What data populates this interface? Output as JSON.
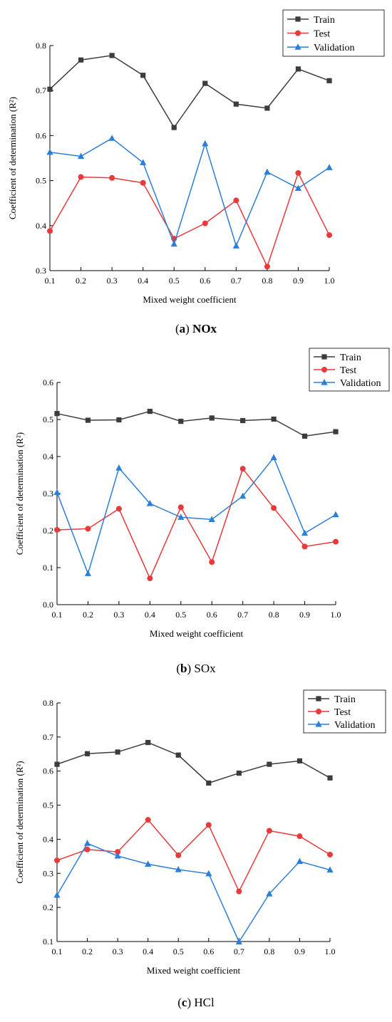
{
  "chart_data": [
    {
      "type": "line",
      "caption_prefix": "(",
      "caption_letter": "a",
      "caption_suffix": ")",
      "caption_name": "NOx",
      "caption_name_bold": true,
      "xlabel": "Mixed weight coefficient",
      "ylabel": "Coefficient of determination (R²)",
      "x": [
        0.1,
        0.2,
        0.3,
        0.4,
        0.5,
        0.6,
        0.7,
        0.8,
        0.9,
        1.0
      ],
      "x_tick_labels": [
        "0.1",
        "0.2",
        "0.3",
        "0.4",
        "0.5",
        "0.6",
        "0.7",
        "0.8",
        "0.9",
        "1.0"
      ],
      "xlim": [
        0.1,
        1.0
      ],
      "ylim": [
        0.3,
        0.8
      ],
      "y_ticks": [
        0.3,
        0.4,
        0.5,
        0.6,
        0.7,
        0.8
      ],
      "y_tick_labels": [
        "0.3",
        "0.4",
        "0.5",
        "0.6",
        "0.7",
        "0.8"
      ],
      "grid": false,
      "legend_position": "top-right",
      "series": [
        {
          "name": "Train",
          "color": "#3c3c3c",
          "marker": "square",
          "values": [
            0.703,
            0.768,
            0.778,
            0.734,
            0.618,
            0.716,
            0.67,
            0.661,
            0.748,
            0.722
          ]
        },
        {
          "name": "Test",
          "color": "#e83a3a",
          "marker": "circle",
          "values": [
            0.388,
            0.508,
            0.506,
            0.495,
            0.371,
            0.405,
            0.456,
            0.309,
            0.517,
            0.379
          ]
        },
        {
          "name": "Validation",
          "color": "#2b7fd6",
          "marker": "triangle",
          "values": [
            0.563,
            0.554,
            0.594,
            0.54,
            0.359,
            0.582,
            0.355,
            0.519,
            0.483,
            0.529
          ]
        }
      ]
    },
    {
      "type": "line",
      "caption_prefix": "(",
      "caption_letter": "b",
      "caption_suffix": ")",
      "caption_name": "SOx",
      "caption_name_bold": false,
      "xlabel": "Mixed weight coefficient",
      "ylabel": "Coefficient of determination (R²)",
      "x": [
        0.1,
        0.2,
        0.3,
        0.4,
        0.5,
        0.6,
        0.7,
        0.8,
        0.9,
        1.0
      ],
      "x_tick_labels": [
        "0.1",
        "0.2",
        "0.3",
        "0.4",
        "0.5",
        "0.6",
        "0.7",
        "0.8",
        "0.9",
        "1.0"
      ],
      "xlim": [
        0.1,
        1.0
      ],
      "ylim": [
        0.0,
        0.6
      ],
      "y_ticks": [
        0.0,
        0.1,
        0.2,
        0.3,
        0.4,
        0.5,
        0.6
      ],
      "y_tick_labels": [
        "0.0",
        "0.1",
        "0.2",
        "0.3",
        "0.4",
        "0.5",
        "0.6"
      ],
      "grid": false,
      "legend_position": "top-right",
      "series": [
        {
          "name": "Train",
          "color": "#3c3c3c",
          "marker": "square",
          "values": [
            0.516,
            0.498,
            0.499,
            0.522,
            0.495,
            0.504,
            0.497,
            0.501,
            0.455,
            0.467
          ]
        },
        {
          "name": "Test",
          "color": "#e83a3a",
          "marker": "circle",
          "values": [
            0.202,
            0.205,
            0.259,
            0.071,
            0.263,
            0.115,
            0.367,
            0.261,
            0.157,
            0.17
          ]
        },
        {
          "name": "Validation",
          "color": "#2b7fd6",
          "marker": "triangle",
          "values": [
            0.303,
            0.084,
            0.369,
            0.273,
            0.236,
            0.23,
            0.293,
            0.397,
            0.193,
            0.243
          ]
        }
      ]
    },
    {
      "type": "line",
      "caption_prefix": "(",
      "caption_letter": "c",
      "caption_suffix": ")",
      "caption_name": "HCl",
      "caption_name_bold": false,
      "xlabel": "Mixed weight coefficient",
      "ylabel": "Coefficient of determination (R²)",
      "x": [
        0.1,
        0.2,
        0.3,
        0.4,
        0.5,
        0.6,
        0.7,
        0.8,
        0.9,
        1.0
      ],
      "x_tick_labels": [
        "0.1",
        "0.2",
        "0.3",
        "0.4",
        "0.5",
        "0.6",
        "0.7",
        "0.8",
        "0.9",
        "1.0"
      ],
      "xlim": [
        0.1,
        1.0
      ],
      "ylim": [
        0.1,
        0.8
      ],
      "y_ticks": [
        0.1,
        0.2,
        0.3,
        0.4,
        0.5,
        0.6,
        0.7,
        0.8
      ],
      "y_tick_labels": [
        "0.1",
        "0.2",
        "0.3",
        "0.4",
        "0.5",
        "0.6",
        "0.7",
        "0.8"
      ],
      "grid": false,
      "legend_position": "top-right",
      "series": [
        {
          "name": "Train",
          "color": "#3c3c3c",
          "marker": "square",
          "values": [
            0.62,
            0.651,
            0.656,
            0.684,
            0.647,
            0.565,
            0.594,
            0.62,
            0.63,
            0.58
          ]
        },
        {
          "name": "Test",
          "color": "#e83a3a",
          "marker": "circle",
          "values": [
            0.338,
            0.37,
            0.363,
            0.457,
            0.353,
            0.442,
            0.247,
            0.425,
            0.409,
            0.355
          ]
        },
        {
          "name": "Validation",
          "color": "#2b7fd6",
          "marker": "triangle",
          "values": [
            0.236,
            0.388,
            0.351,
            0.327,
            0.311,
            0.299,
            0.099,
            0.24,
            0.335,
            0.31
          ]
        }
      ]
    }
  ]
}
